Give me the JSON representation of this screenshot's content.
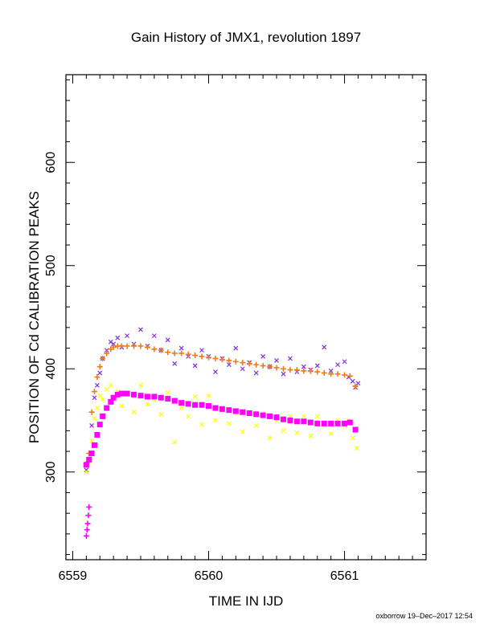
{
  "chart_data": {
    "type": "scatter",
    "title": "Gain History of JMX1, revolution 1897",
    "xlabel": "TIME IN IJD",
    "ylabel": "POSITION OF Cd CALIBRATION PEAKS",
    "xlim": [
      6558.95,
      6561.6
    ],
    "ylim": [
      215,
      685
    ],
    "x_ticks": [
      "6559",
      "6560",
      "6561"
    ],
    "y_ticks": [
      "300",
      "400",
      "500",
      "600"
    ],
    "grid": false,
    "footer": "oxborrow 19–Dec–2017 12:54",
    "colors": {
      "upper_raw": "#7f2fd9",
      "upper_smooth": "#f07a1a",
      "lower_raw": "#ffff00",
      "lower_smooth": "#ff00ff"
    },
    "series": [
      {
        "marker": "x",
        "color": "#7f2fd9",
        "x": [
          6559.1,
          6559.12,
          6559.14,
          6559.16,
          6559.18,
          6559.2,
          6559.22,
          6559.25,
          6559.28,
          6559.3,
          6559.33,
          6559.36,
          6559.4,
          6559.45,
          6559.5,
          6559.55,
          6559.6,
          6559.65,
          6559.7,
          6559.75,
          6559.8,
          6559.85,
          6559.9,
          6559.95,
          6560.0,
          6560.05,
          6560.1,
          6560.15,
          6560.2,
          6560.25,
          6560.3,
          6560.35,
          6560.4,
          6560.45,
          6560.5,
          6560.55,
          6560.6,
          6560.65,
          6560.7,
          6560.75,
          6560.8,
          6560.85,
          6560.9,
          6560.95,
          6561.0,
          6561.03,
          6561.06,
          6561.08,
          6561.1
        ],
        "y": [
          302,
          312,
          345,
          372,
          384,
          396,
          410,
          418,
          426,
          424,
          430,
          421,
          432,
          424,
          438,
          422,
          432,
          418,
          428,
          405,
          420,
          412,
          403,
          418,
          412,
          397,
          410,
          404,
          420,
          400,
          406,
          396,
          412,
          402,
          408,
          395,
          410,
          397,
          402,
          399,
          403,
          421,
          398,
          404,
          407,
          392,
          388,
          382,
          386
        ]
      },
      {
        "marker": "+",
        "color": "#f07a1a",
        "x": [
          6559.1,
          6559.12,
          6559.14,
          6559.16,
          6559.18,
          6559.2,
          6559.22,
          6559.25,
          6559.28,
          6559.3,
          6559.33,
          6559.36,
          6559.4,
          6559.45,
          6559.5,
          6559.55,
          6559.6,
          6559.65,
          6559.7,
          6559.75,
          6559.8,
          6559.85,
          6559.9,
          6559.95,
          6560.0,
          6560.05,
          6560.1,
          6560.15,
          6560.2,
          6560.25,
          6560.3,
          6560.35,
          6560.4,
          6560.45,
          6560.5,
          6560.55,
          6560.6,
          6560.65,
          6560.7,
          6560.75,
          6560.8,
          6560.85,
          6560.9,
          6560.95,
          6561.0,
          6561.04,
          6561.08
        ],
        "y": [
          308,
          318,
          358,
          378,
          392,
          402,
          410,
          415,
          419,
          421,
          422,
          422,
          422,
          422,
          422,
          421,
          419,
          418,
          416,
          415,
          415,
          414,
          413,
          412,
          411,
          410,
          409,
          408,
          407,
          406,
          405,
          404,
          403,
          402,
          401,
          400,
          399,
          399,
          398,
          398,
          397,
          396,
          395,
          395,
          394,
          393,
          383
        ]
      },
      {
        "marker": "x",
        "color": "#ffff00",
        "x": [
          6559.1,
          6559.12,
          6559.14,
          6559.16,
          6559.18,
          6559.2,
          6559.22,
          6559.25,
          6559.28,
          6559.3,
          6559.33,
          6559.36,
          6559.4,
          6559.45,
          6559.5,
          6559.55,
          6559.6,
          6559.65,
          6559.7,
          6559.75,
          6559.8,
          6559.85,
          6559.9,
          6559.95,
          6560.0,
          6560.05,
          6560.1,
          6560.15,
          6560.2,
          6560.25,
          6560.3,
          6560.35,
          6560.4,
          6560.45,
          6560.5,
          6560.55,
          6560.6,
          6560.65,
          6560.7,
          6560.75,
          6560.8,
          6560.85,
          6560.9,
          6560.95,
          6561.0,
          6561.03,
          6561.06,
          6561.09
        ],
        "y": [
          300,
          310,
          330,
          352,
          362,
          374,
          370,
          380,
          384,
          372,
          378,
          364,
          376,
          358,
          384,
          366,
          370,
          356,
          377,
          329,
          362,
          354,
          373,
          346,
          374,
          350,
          362,
          347,
          357,
          339,
          357,
          345,
          355,
          333,
          350,
          340,
          354,
          338,
          354,
          335,
          354,
          345,
          337,
          350,
          345,
          350,
          333,
          323
        ]
      },
      {
        "marker": "+",
        "color": "#ff00ff",
        "x": [
          6559.1,
          6559.105,
          6559.11,
          6559.115,
          6559.12
        ],
        "y": [
          238,
          244,
          250,
          258,
          266
        ]
      },
      {
        "marker": "square",
        "color": "#ff00ff",
        "x": [
          6559.1,
          6559.12,
          6559.14,
          6559.16,
          6559.18,
          6559.2,
          6559.22,
          6559.25,
          6559.28,
          6559.3,
          6559.33,
          6559.36,
          6559.4,
          6559.45,
          6559.5,
          6559.55,
          6559.6,
          6559.65,
          6559.7,
          6559.75,
          6559.8,
          6559.85,
          6559.9,
          6559.95,
          6560.0,
          6560.05,
          6560.1,
          6560.15,
          6560.2,
          6560.25,
          6560.3,
          6560.35,
          6560.4,
          6560.45,
          6560.5,
          6560.55,
          6560.6,
          6560.65,
          6560.7,
          6560.75,
          6560.8,
          6560.85,
          6560.9,
          6560.95,
          6561.0,
          6561.04,
          6561.08
        ],
        "y": [
          307,
          312,
          318,
          326,
          336,
          346,
          354,
          362,
          368,
          372,
          375,
          376,
          376,
          375,
          374,
          373,
          373,
          372,
          371,
          369,
          367,
          366,
          365,
          365,
          364,
          362,
          361,
          360,
          359,
          358,
          357,
          356,
          355,
          354,
          353,
          351,
          350,
          349,
          349,
          348,
          347,
          347,
          347,
          347,
          347,
          348,
          341
        ]
      }
    ]
  }
}
